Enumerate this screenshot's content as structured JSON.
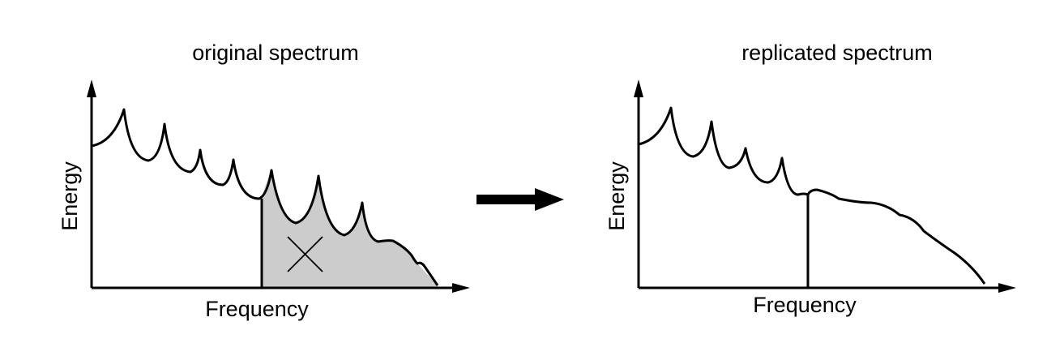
{
  "panels": [
    {
      "title": "original spectrum",
      "y_label": "Energy",
      "x_label": "Frequency"
    },
    {
      "title": "replicated spectrum",
      "y_label": "Energy",
      "x_label": "Frequency"
    }
  ]
}
